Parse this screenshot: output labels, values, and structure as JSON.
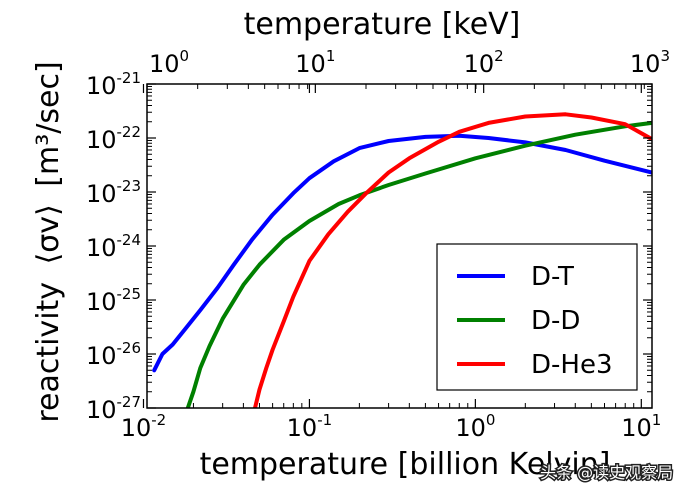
{
  "chart_data": {
    "type": "line",
    "xlabel": "temperature  [billion Kelvin]",
    "top_xlabel": "temperature  [keV]",
    "ylabel_text": "reactivity",
    "ylabel_symbol": "⟨σv⟩",
    "ylabel_units": "[m³/sec]",
    "x_scale": "log",
    "y_scale": "log",
    "xlim": [
      0.0105,
      11.6
    ],
    "ylim": [
      1e-27,
      1e-21
    ],
    "top_xlim_keV": [
      1,
      1000
    ],
    "x_ticks": [
      {
        "base": "10",
        "exp": "-2"
      },
      {
        "base": "10",
        "exp": "-1"
      },
      {
        "base": "10",
        "exp": "0"
      },
      {
        "base": "10",
        "exp": "1"
      }
    ],
    "x_tick_values": [
      0.01,
      0.1,
      1,
      10
    ],
    "top_x_ticks": [
      {
        "base": "10",
        "exp": "0"
      },
      {
        "base": "10",
        "exp": "1"
      },
      {
        "base": "10",
        "exp": "2"
      },
      {
        "base": "10",
        "exp": "3"
      }
    ],
    "top_x_tick_values": [
      1,
      10,
      100,
      1000
    ],
    "y_ticks": [
      {
        "base": "10",
        "exp": "-21"
      },
      {
        "base": "10",
        "exp": "-22"
      },
      {
        "base": "10",
        "exp": "-23"
      },
      {
        "base": "10",
        "exp": "-24"
      },
      {
        "base": "10",
        "exp": "-25"
      },
      {
        "base": "10",
        "exp": "-26"
      },
      {
        "base": "10",
        "exp": "-27"
      }
    ],
    "y_tick_values": [
      1e-21,
      1e-22,
      1e-23,
      1e-24,
      1e-25,
      1e-26,
      1e-27
    ],
    "grid": false,
    "legend_position": "lower-right",
    "series": [
      {
        "name": "D-T",
        "color": "#0000ff",
        "x": [
          0.0116,
          0.013,
          0.015,
          0.018,
          0.022,
          0.028,
          0.035,
          0.045,
          0.06,
          0.08,
          0.1,
          0.14,
          0.2,
          0.3,
          0.5,
          0.8,
          1.2,
          2,
          3.5,
          6,
          11.6
        ],
        "y": [
          5e-27,
          1e-26,
          1.5e-26,
          3e-26,
          6.5e-26,
          1.7e-25,
          4.5e-25,
          1.3e-24,
          3.8e-24,
          9.5e-24,
          1.8e-23,
          3.7e-23,
          6.5e-23,
          8.8e-23,
          1.05e-22,
          1.1e-22,
          1e-22,
          8.3e-23,
          6e-23,
          3.8e-23,
          2.3e-23
        ]
      },
      {
        "name": "D-D",
        "color": "#008000",
        "x": [
          0.0185,
          0.02,
          0.022,
          0.025,
          0.03,
          0.04,
          0.05,
          0.07,
          0.1,
          0.15,
          0.2,
          0.3,
          0.5,
          1,
          2,
          4,
          8,
          11.6
        ],
        "y": [
          1e-27,
          2e-27,
          5.5e-27,
          1.4e-26,
          4.5e-26,
          1.9e-25,
          4.5e-25,
          1.3e-24,
          2.9e-24,
          6e-24,
          8.7e-24,
          1.35e-23,
          2.2e-23,
          4.2e-23,
          7.2e-23,
          1.15e-22,
          1.65e-22,
          1.9e-22
        ]
      },
      {
        "name": "D-He3",
        "color": "#ff0000",
        "x": [
          0.047,
          0.05,
          0.055,
          0.06,
          0.07,
          0.08,
          0.1,
          0.13,
          0.17,
          0.22,
          0.3,
          0.4,
          0.6,
          0.8,
          1.2,
          2,
          3.5,
          5,
          8,
          11.6
        ],
        "y": [
          1e-27,
          2.2e-27,
          5.5e-27,
          1.2e-26,
          4e-26,
          1.15e-25,
          5.3e-25,
          1.65e-24,
          4.3e-24,
          9.5e-24,
          2.3e-23,
          4.2e-23,
          8.5e-23,
          1.3e-22,
          1.9e-22,
          2.5e-22,
          2.75e-22,
          2.4e-22,
          1.8e-22,
          9.5e-23
        ]
      }
    ]
  },
  "watermark": "头条 @读史观察局"
}
